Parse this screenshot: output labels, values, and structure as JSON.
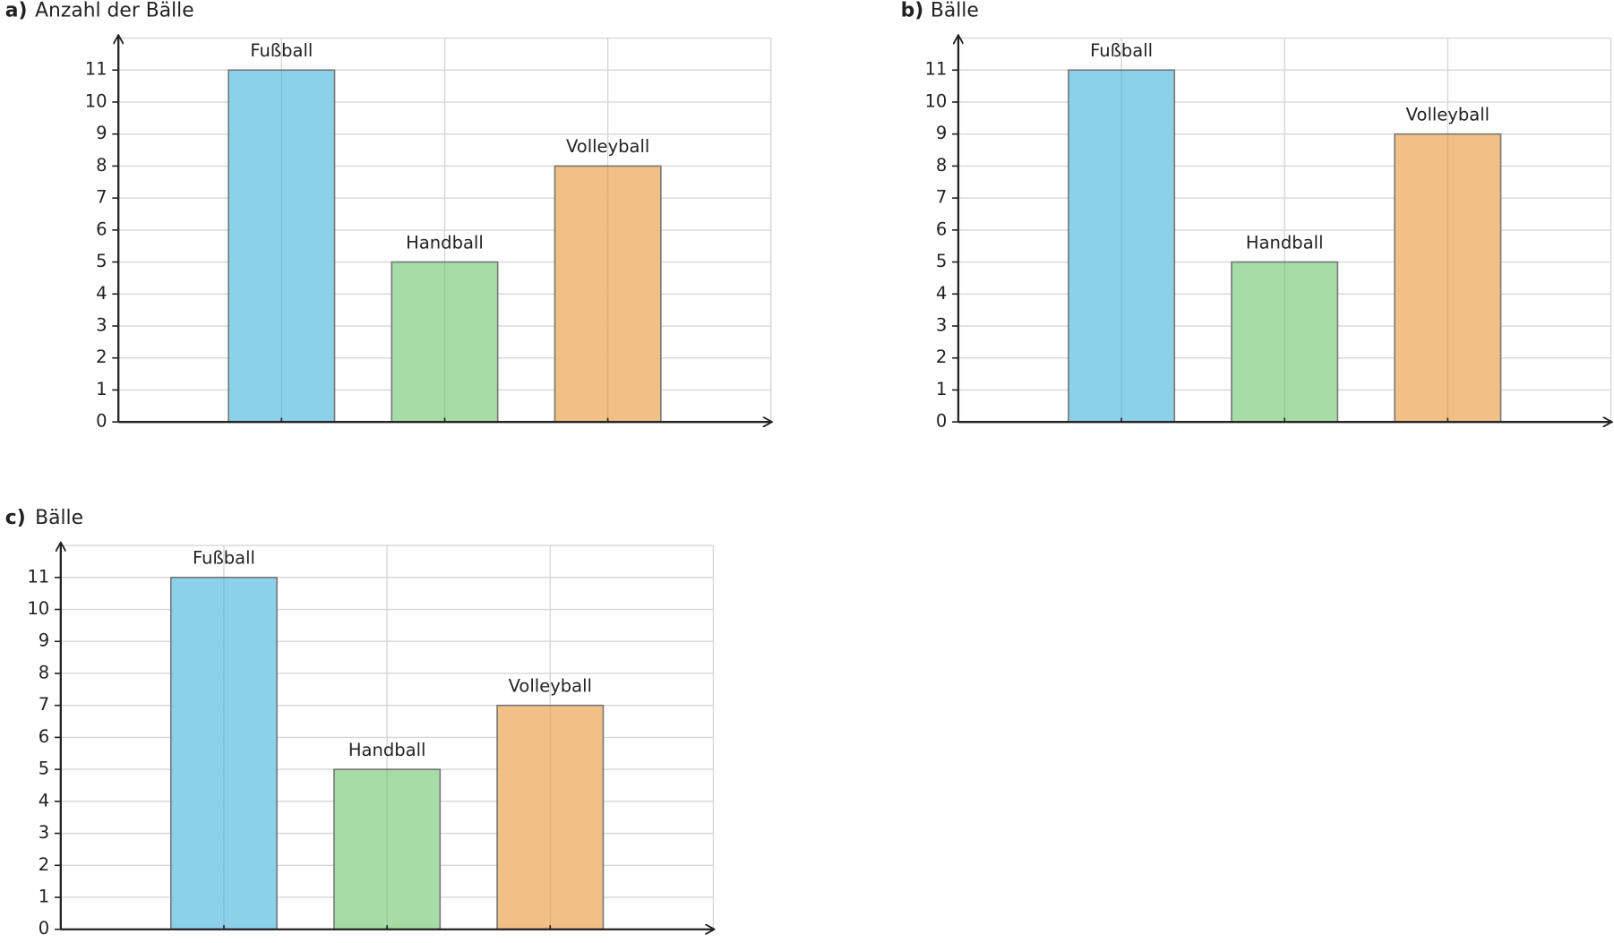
{
  "chart_data": [
    {
      "type": "bar",
      "label": "a)",
      "title": "Anzahl der Bälle",
      "categories": [
        "Fußball",
        "Handball",
        "Volleyball"
      ],
      "values": [
        11,
        5,
        8
      ],
      "colors": [
        "#87cfe8",
        "#a3dba3",
        "#f2bd82"
      ],
      "ylim": [
        0,
        12
      ],
      "yticks": [
        0,
        1,
        2,
        3,
        4,
        5,
        6,
        7,
        8,
        9,
        10,
        11
      ],
      "grid": true
    },
    {
      "type": "bar",
      "label": "b)",
      "title": "Bälle",
      "categories": [
        "Fußball",
        "Handball",
        "Volleyball"
      ],
      "values": [
        11,
        5,
        9
      ],
      "colors": [
        "#87cfe8",
        "#a3dba3",
        "#f2bd82"
      ],
      "ylim": [
        0,
        12
      ],
      "yticks": [
        0,
        1,
        2,
        3,
        4,
        5,
        6,
        7,
        8,
        9,
        10,
        11
      ],
      "grid": true
    },
    {
      "type": "bar",
      "label": "c)",
      "title": "Bälle",
      "categories": [
        "Fußball",
        "Handball",
        "Volleyball"
      ],
      "values": [
        11,
        5,
        7
      ],
      "colors": [
        "#87cfe8",
        "#a3dba3",
        "#f2bd82"
      ],
      "ylim": [
        0,
        12
      ],
      "yticks": [
        0,
        1,
        2,
        3,
        4,
        5,
        6,
        7,
        8,
        9,
        10,
        11
      ],
      "grid": true
    }
  ]
}
